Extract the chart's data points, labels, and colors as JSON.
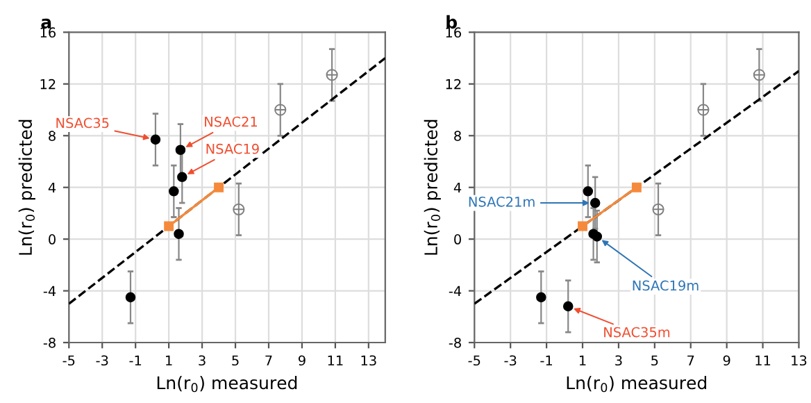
{
  "chart_data": [
    {
      "type": "scatter",
      "title": "a",
      "xlabel": "Ln(r$_{0}$) measured",
      "ylabel": "Ln(r$_{0}$) predicted",
      "xlim": [
        -5,
        14
      ],
      "ylim": [
        -8,
        16
      ],
      "xticks": [
        -5,
        -3,
        -1,
        1,
        3,
        5,
        7,
        9,
        11,
        13
      ],
      "yticks": [
        -8,
        -4,
        0,
        4,
        8,
        12,
        16
      ],
      "grid": true,
      "legend": false,
      "series": [
        {
          "type": "line",
          "color": "#000000",
          "line_style": "dashed",
          "marker": "none",
          "x": [
            -5,
            14
          ],
          "values": [
            -5,
            14
          ]
        },
        {
          "type": "line",
          "color": "#f58a3c",
          "line_style": "solid",
          "marker": "square",
          "x": [
            1,
            4
          ],
          "values": [
            1,
            4
          ]
        },
        {
          "type": "scatter",
          "color": "#000000",
          "marker": "circle",
          "x": [
            -1.3,
            0.2,
            1.7,
            1.8,
            1.3,
            1.6
          ],
          "values": [
            -4.5,
            7.7,
            6.9,
            4.8,
            3.7,
            0.4
          ],
          "errors": [
            2,
            2,
            2,
            2,
            2,
            2
          ]
        },
        {
          "type": "scatter",
          "color": "#808080",
          "marker": "cross",
          "x": [
            5.2,
            7.7,
            10.8
          ],
          "values": [
            2.3,
            10,
            12.7
          ],
          "errors": [
            2,
            2,
            2
          ]
        }
      ],
      "annotations": [
        {
          "text": "NSAC35",
          "x": 0.2,
          "y": 7.7
        },
        {
          "text": "NSAC21",
          "x": 1.7,
          "y": 6.9
        },
        {
          "text": "NSAC19",
          "x": 1.8,
          "y": 4.8
        }
      ]
    },
    {
      "type": "scatter",
      "title": "b",
      "xlabel": "Ln(r$_{0}$) measured",
      "ylabel": "Ln(r$_{0}$) predicted",
      "xlim": [
        -5,
        13
      ],
      "ylim": [
        -8,
        16
      ],
      "xticks": [
        -5,
        -3,
        -1,
        1,
        3,
        5,
        7,
        9,
        11,
        13
      ],
      "yticks": [
        -8,
        -4,
        0,
        4,
        8,
        12,
        16
      ],
      "grid": true,
      "legend": false,
      "series": [
        {
          "type": "line",
          "color": "#000000",
          "line_style": "dashed",
          "marker": "none",
          "x": [
            -5,
            13
          ],
          "values": [
            -5,
            13
          ]
        },
        {
          "type": "line",
          "color": "#f58a3c",
          "line_style": "solid",
          "marker": "square",
          "x": [
            1,
            4
          ],
          "values": [
            1,
            4
          ]
        },
        {
          "type": "scatter",
          "color": "#000000",
          "marker": "circle",
          "x": [
            -1.3,
            0.2,
            1.3,
            1.7,
            1.6,
            1.8
          ],
          "values": [
            -4.5,
            -5.2,
            3.7,
            2.8,
            0.4,
            0.2
          ],
          "errors": [
            2,
            2,
            2,
            2,
            2,
            2
          ]
        },
        {
          "type": "scatter",
          "color": "#808080",
          "marker": "cross",
          "x": [
            5.2,
            7.7,
            10.8
          ],
          "values": [
            2.3,
            10,
            12.7
          ],
          "errors": [
            2,
            2,
            2
          ]
        }
      ],
      "annotations": [
        {
          "text": "NSAC21m",
          "x": 1.7,
          "y": 2.8
        },
        {
          "text": "NSAC19m",
          "x": 1.8,
          "y": 0.2
        },
        {
          "text": "NSAC35m",
          "x": 0.2,
          "y": -5.2
        }
      ]
    }
  ]
}
